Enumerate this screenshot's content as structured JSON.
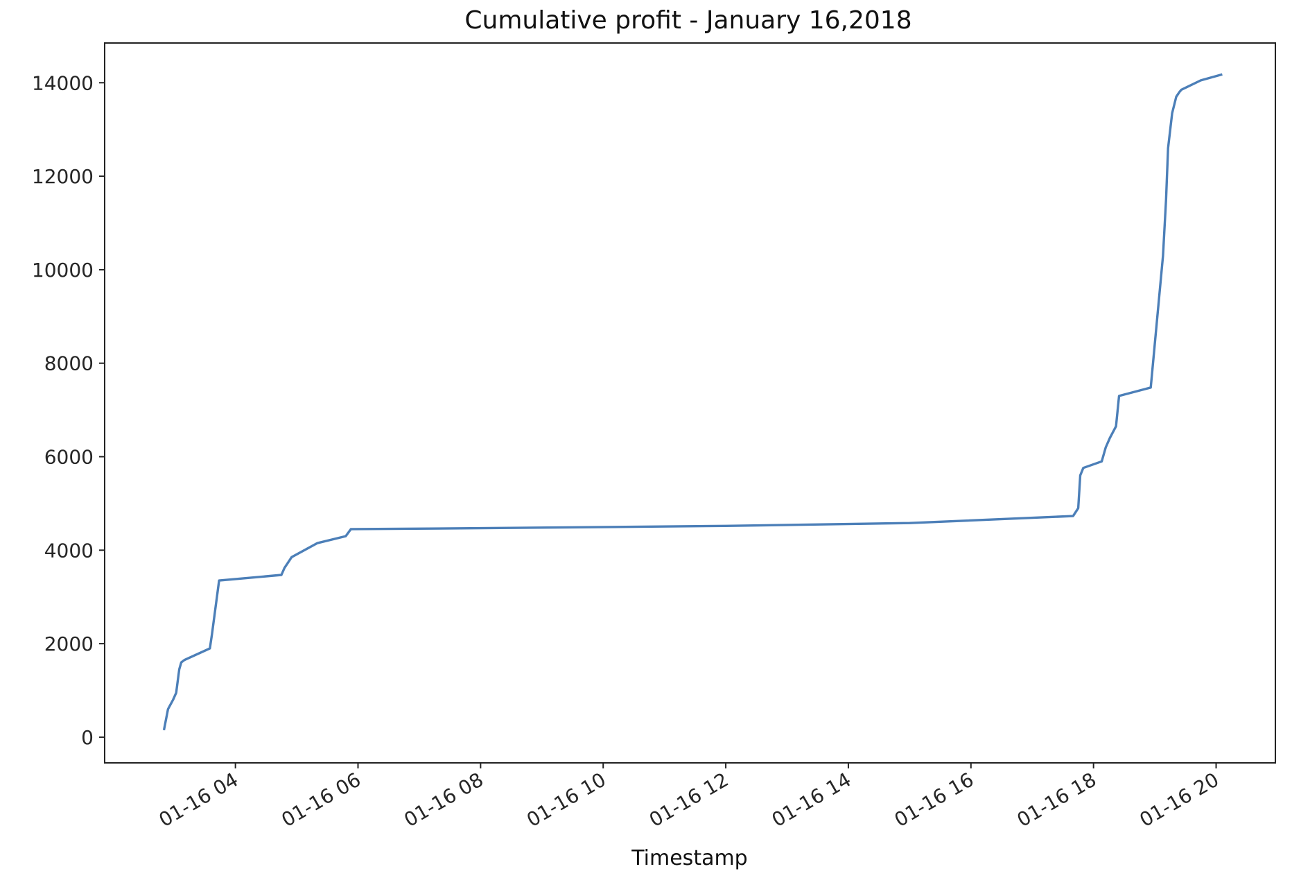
{
  "chart_data": {
    "type": "line",
    "title": "Cumulative profit - January 16,2018",
    "xlabel": "Timestamp",
    "ylabel": "",
    "x_ticks": [
      "2018-01-16T04:00",
      "2018-01-16T06:00",
      "2018-01-16T08:00",
      "2018-01-16T10:00",
      "2018-01-16T12:00",
      "2018-01-16T14:00",
      "2018-01-16T16:00",
      "2018-01-16T18:00",
      "2018-01-16T20:00"
    ],
    "x_tick_labels": [
      "01-16 04",
      "01-16 06",
      "01-16 08",
      "01-16 10",
      "01-16 12",
      "01-16 14",
      "01-16 16",
      "01-16 18",
      "01-16 20"
    ],
    "y_ticks": [
      0,
      2000,
      4000,
      6000,
      8000,
      10000,
      12000,
      14000
    ],
    "y_tick_labels": [
      "0",
      "2000",
      "4000",
      "6000",
      "8000",
      "10000",
      "12000",
      "14000"
    ],
    "xlim": [
      "2018-01-16T01:52",
      "2018-01-16T20:58"
    ],
    "ylim": [
      -550,
      14850
    ],
    "grid": false,
    "series_color": "#4c7fb8",
    "x": [
      "2018-01-16T02:50",
      "2018-01-16T02:54",
      "2018-01-16T02:59",
      "2018-01-16T03:02",
      "2018-01-16T03:05",
      "2018-01-16T03:07",
      "2018-01-16T03:10",
      "2018-01-16T03:35",
      "2018-01-16T03:37",
      "2018-01-16T03:44",
      "2018-01-16T04:45",
      "2018-01-16T04:48",
      "2018-01-16T04:55",
      "2018-01-16T05:20",
      "2018-01-16T05:48",
      "2018-01-16T05:53",
      "2018-01-16T08:00",
      "2018-01-16T12:00",
      "2018-01-16T15:00",
      "2018-01-16T17:40",
      "2018-01-16T17:45",
      "2018-01-16T17:47",
      "2018-01-16T17:50",
      "2018-01-16T18:08",
      "2018-01-16T18:12",
      "2018-01-16T18:16",
      "2018-01-16T18:22",
      "2018-01-16T18:25",
      "2018-01-16T18:56",
      "2018-01-16T19:08",
      "2018-01-16T19:11",
      "2018-01-16T19:13",
      "2018-01-16T19:17",
      "2018-01-16T19:21",
      "2018-01-16T19:24",
      "2018-01-16T19:26",
      "2018-01-16T19:45",
      "2018-01-16T20:06"
    ],
    "y": [
      150,
      600,
      800,
      950,
      1450,
      1600,
      1650,
      1900,
      2200,
      3350,
      3470,
      3620,
      3850,
      4150,
      4300,
      4450,
      4470,
      4520,
      4580,
      4730,
      4900,
      5600,
      5760,
      5900,
      6200,
      6400,
      6650,
      7300,
      7480,
      10300,
      11500,
      12600,
      13350,
      13700,
      13800,
      13850,
      14050,
      14180
    ]
  }
}
